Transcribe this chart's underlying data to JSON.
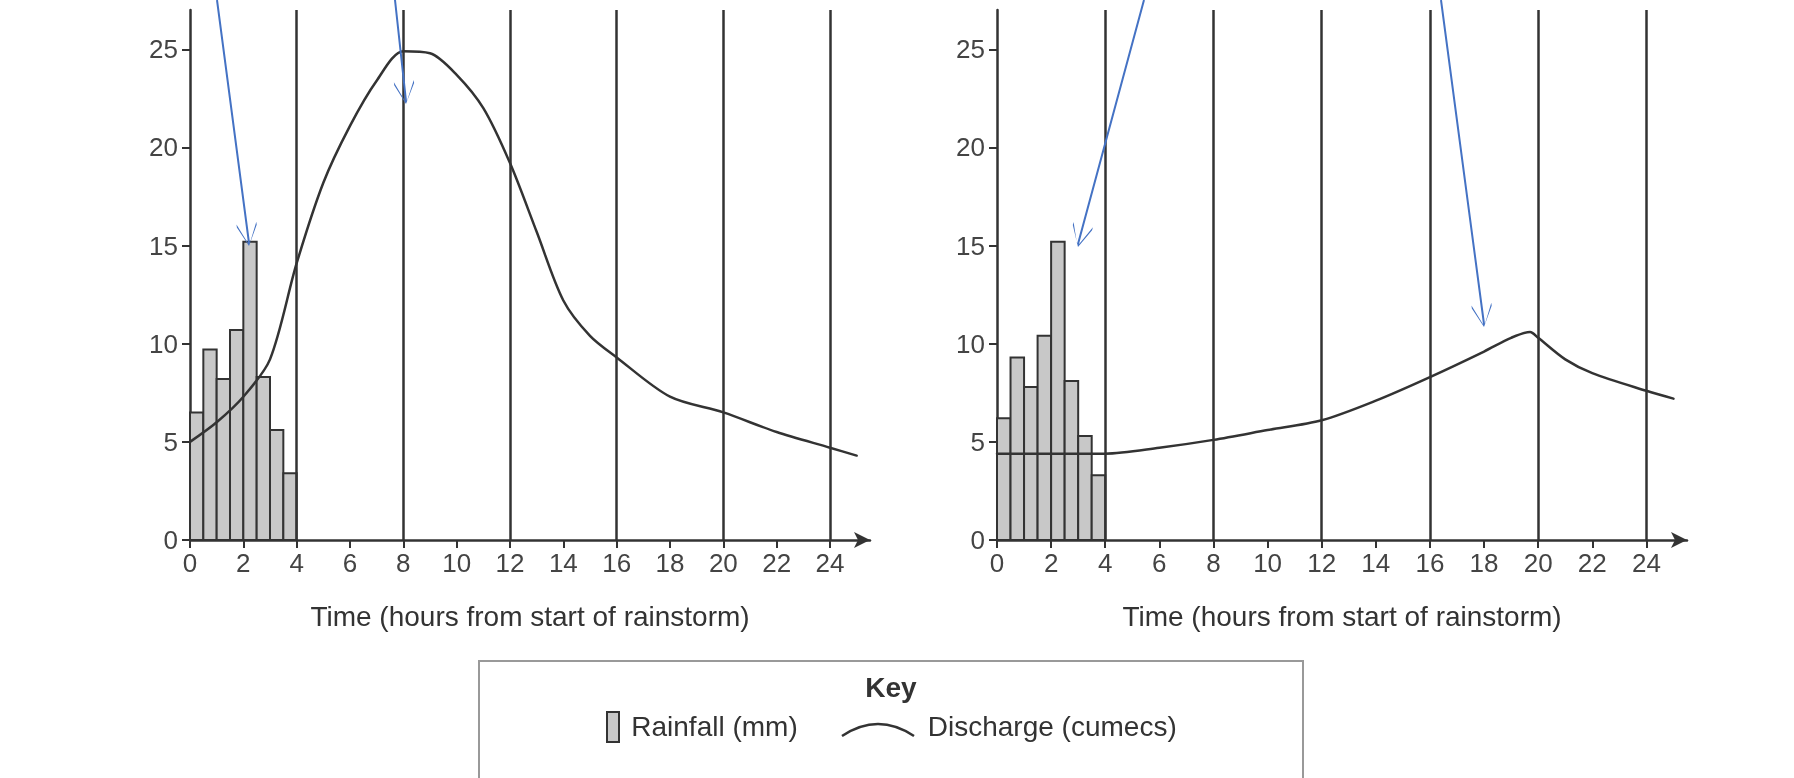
{
  "chart_data": [
    {
      "type": "histogram",
      "xlabel": "Time (hours from start of rainstorm)",
      "legend": "bottom",
      "legend_title": "Key",
      "grid": false,
      "xlim": [
        0,
        25.5
      ],
      "xticks": [
        0,
        2,
        4,
        6,
        8,
        10,
        12,
        14,
        16,
        18,
        20,
        22,
        24
      ],
      "ylim": [
        0,
        27
      ],
      "yticks": [
        0,
        5,
        10,
        15,
        20,
        25
      ],
      "ref_lines": [
        {
          "axis": "x",
          "value": 4,
          "color": "#333333"
        },
        {
          "axis": "x",
          "value": 8,
          "color": "#333333"
        },
        {
          "axis": "x",
          "value": 12,
          "color": "#333333"
        },
        {
          "axis": "x",
          "value": 16,
          "color": "#333333"
        },
        {
          "axis": "x",
          "value": 20,
          "color": "#333333"
        },
        {
          "axis": "x",
          "value": 24,
          "color": "#333333"
        }
      ],
      "series": [
        {
          "name": "Rainfall (mm)",
          "color": "#c8c8c8",
          "bins": [
            0,
            0.5,
            1,
            1.5,
            2,
            2.5,
            3,
            3.5,
            4
          ],
          "values": [
            6.5,
            9.7,
            8.2,
            10.7,
            15.2,
            8.3,
            5.6,
            3.4
          ]
        },
        {
          "type": "line",
          "name": "Discharge (cumecs)",
          "color": "#333333",
          "marker": "none",
          "x": [
            0,
            1,
            2,
            3,
            4,
            5,
            6,
            7,
            8,
            9,
            10,
            11,
            12,
            13,
            14,
            15,
            16,
            18,
            20,
            22,
            24,
            25
          ],
          "values": [
            5,
            6,
            7.3,
            9.2,
            14.1,
            18.2,
            21.1,
            23.4,
            24.9,
            24.8,
            23.7,
            22,
            19.2,
            15.7,
            12.2,
            10.4,
            9.3,
            7.3,
            6.5,
            5.5,
            4.7,
            4.3
          ]
        }
      ]
    },
    {
      "type": "histogram",
      "xlabel": "Time (hours from start of rainstorm)",
      "grid": false,
      "xlim": [
        0,
        25.5
      ],
      "xticks": [
        0,
        2,
        4,
        6,
        8,
        10,
        12,
        14,
        16,
        18,
        20,
        22,
        24
      ],
      "ylim": [
        0,
        27
      ],
      "yticks": [
        0,
        5,
        10,
        15,
        20,
        25
      ],
      "ref_lines": [
        {
          "axis": "x",
          "value": 4,
          "color": "#333333"
        },
        {
          "axis": "x",
          "value": 8,
          "color": "#333333"
        },
        {
          "axis": "x",
          "value": 12,
          "color": "#333333"
        },
        {
          "axis": "x",
          "value": 16,
          "color": "#333333"
        },
        {
          "axis": "x",
          "value": 20,
          "color": "#333333"
        },
        {
          "axis": "x",
          "value": 24,
          "color": "#333333"
        }
      ],
      "series": [
        {
          "color": "#c8c8c8",
          "bins": [
            0,
            0.5,
            1,
            1.5,
            2,
            2.5,
            3,
            3.5,
            4
          ],
          "values": [
            6.2,
            9.3,
            7.8,
            10.4,
            15.2,
            8.1,
            5.3,
            3.3
          ]
        },
        {
          "type": "line",
          "color": "#333333",
          "marker": "none",
          "x": [
            0,
            2,
            4,
            6,
            8,
            10,
            12,
            14,
            16,
            18,
            19,
            19.7,
            20,
            21,
            22,
            24,
            25
          ],
          "values": [
            4.4,
            4.4,
            4.4,
            4.7,
            5.1,
            5.6,
            6.1,
            7.1,
            8.3,
            9.6,
            10.3,
            10.6,
            10.3,
            9.2,
            8.5,
            7.6,
            7.2
          ]
        }
      ]
    }
  ]
}
